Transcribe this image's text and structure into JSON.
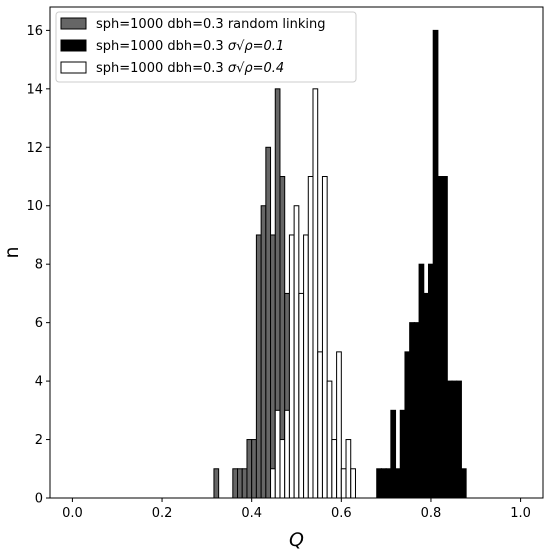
{
  "chart_data": {
    "type": "bar",
    "title": "",
    "xlabel": "Q",
    "ylabel": "n",
    "xlim": [
      -0.05,
      1.05
    ],
    "ylim": [
      0,
      16.8
    ],
    "bin_width": 0.0105,
    "xticks": [
      0.0,
      0.2,
      0.4,
      0.6,
      0.8,
      1.0
    ],
    "xtick_labels": [
      "0.0",
      "0.2",
      "0.4",
      "0.6",
      "0.8",
      "1.0"
    ],
    "yticks": [
      0,
      2,
      4,
      6,
      8,
      10,
      12,
      14,
      16
    ],
    "ytick_labels": [
      "0",
      "2",
      "4",
      "6",
      "8",
      "10",
      "12",
      "14",
      "16"
    ],
    "legend_position": "top-left",
    "grid": false,
    "series": [
      {
        "label_prefix": "sph=1000 dbh=0.3 random linking",
        "label_math": "",
        "color": "#666666",
        "bins": [
          {
            "x": 0.3158,
            "n": 1
          },
          {
            "x": 0.3579,
            "n": 1
          },
          {
            "x": 0.3684,
            "n": 1
          },
          {
            "x": 0.3789,
            "n": 1
          },
          {
            "x": 0.3895,
            "n": 2
          },
          {
            "x": 0.4,
            "n": 2
          },
          {
            "x": 0.4105,
            "n": 9
          },
          {
            "x": 0.4211,
            "n": 10
          },
          {
            "x": 0.4316,
            "n": 12
          },
          {
            "x": 0.4421,
            "n": 9
          },
          {
            "x": 0.4526,
            "n": 14
          },
          {
            "x": 0.4632,
            "n": 11
          },
          {
            "x": 0.4737,
            "n": 7
          }
        ]
      },
      {
        "label_prefix": "sph=1000 dbh=0.3 ",
        "label_math": "σ√ρ=0.1",
        "color": "#000000",
        "bins": [
          {
            "x": 0.679,
            "n": 1
          },
          {
            "x": 0.6895,
            "n": 1
          },
          {
            "x": 0.7,
            "n": 1
          },
          {
            "x": 0.7105,
            "n": 3
          },
          {
            "x": 0.721,
            "n": 1
          },
          {
            "x": 0.7315,
            "n": 3
          },
          {
            "x": 0.742,
            "n": 5
          },
          {
            "x": 0.7525,
            "n": 6
          },
          {
            "x": 0.763,
            "n": 6
          },
          {
            "x": 0.7735,
            "n": 8
          },
          {
            "x": 0.784,
            "n": 7
          },
          {
            "x": 0.7945,
            "n": 8
          },
          {
            "x": 0.805,
            "n": 16
          },
          {
            "x": 0.8155,
            "n": 11
          },
          {
            "x": 0.826,
            "n": 11
          },
          {
            "x": 0.8365,
            "n": 4
          },
          {
            "x": 0.847,
            "n": 4
          },
          {
            "x": 0.8575,
            "n": 4
          },
          {
            "x": 0.868,
            "n": 1
          }
        ]
      },
      {
        "label_prefix": "sph=1000 dbh=0.3 ",
        "label_math": "σ√ρ=0.4",
        "color": "#ffffff",
        "bins": [
          {
            "x": 0.4421,
            "n": 1
          },
          {
            "x": 0.4526,
            "n": 3
          },
          {
            "x": 0.4632,
            "n": 2
          },
          {
            "x": 0.4737,
            "n": 3
          },
          {
            "x": 0.4842,
            "n": 9
          },
          {
            "x": 0.4947,
            "n": 10
          },
          {
            "x": 0.5053,
            "n": 7
          },
          {
            "x": 0.5158,
            "n": 9
          },
          {
            "x": 0.5263,
            "n": 11
          },
          {
            "x": 0.5368,
            "n": 14
          },
          {
            "x": 0.5474,
            "n": 5
          },
          {
            "x": 0.5579,
            "n": 11
          },
          {
            "x": 0.5684,
            "n": 4
          },
          {
            "x": 0.5789,
            "n": 2
          },
          {
            "x": 0.5895,
            "n": 5
          },
          {
            "x": 0.6,
            "n": 1
          },
          {
            "x": 0.6105,
            "n": 2
          },
          {
            "x": 0.6211,
            "n": 1
          }
        ]
      }
    ]
  }
}
